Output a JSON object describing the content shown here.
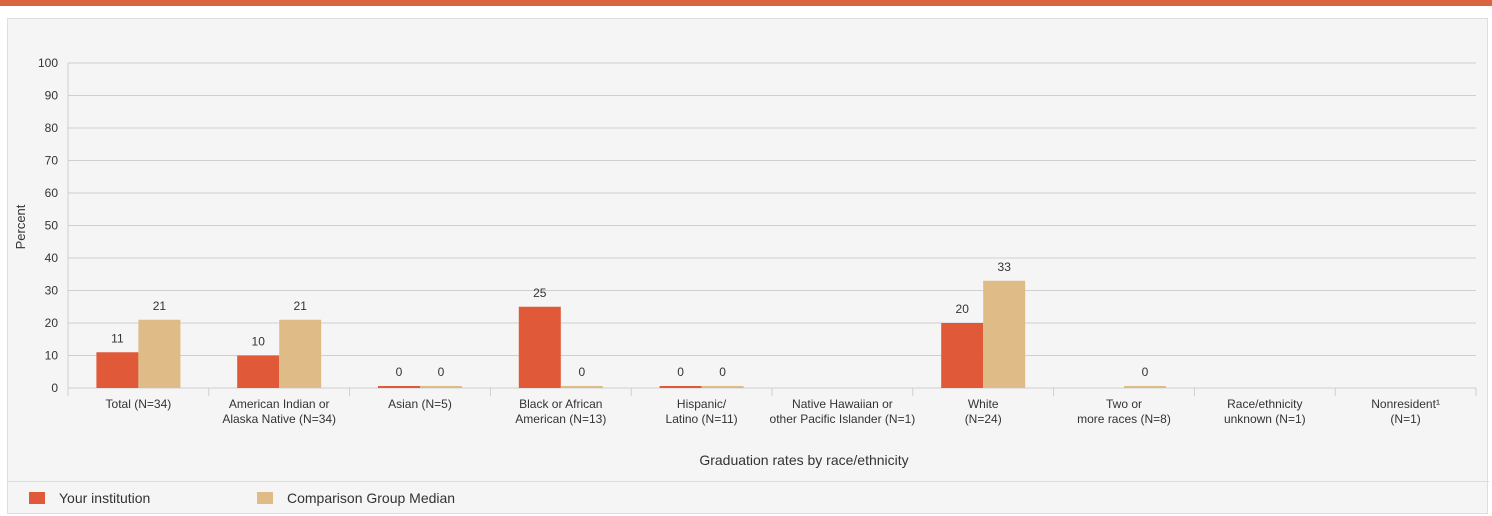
{
  "colors": {
    "accent_bar": "#d9643f",
    "your_institution": "#e05a3a",
    "comparison_median": "#dfbb87",
    "gridline": "#cfcfcf"
  },
  "chart_data": {
    "type": "bar",
    "xlabel": "Graduation rates by race/ethnicity",
    "ylabel": "Percent",
    "ylim": [
      0,
      100
    ],
    "yticks": [
      0,
      10,
      20,
      30,
      40,
      50,
      60,
      70,
      80,
      90,
      100
    ],
    "grid": true,
    "legend_position": "bottom-left",
    "categories": [
      [
        "Total (N=34)"
      ],
      [
        "American Indian or",
        "Alaska Native (N=34)"
      ],
      [
        "Asian (N=5)"
      ],
      [
        "Black or African",
        "American (N=13)"
      ],
      [
        "Hispanic/",
        "Latino (N=11)"
      ],
      [
        "Native Hawaiian or",
        "other Pacific Islander (N=1)"
      ],
      [
        "White",
        "(N=24)"
      ],
      [
        "Two or",
        "more races (N=8)"
      ],
      [
        "Race/ethnicity",
        "unknown (N=1)"
      ],
      [
        "Nonresident¹",
        "(N=1)"
      ]
    ],
    "series": [
      {
        "name": "Your institution",
        "color": "#e05a3a",
        "values": [
          11,
          10,
          0,
          25,
          0,
          null,
          20,
          null,
          null,
          null
        ]
      },
      {
        "name": "Comparison Group Median",
        "color": "#dfbb87",
        "values": [
          21,
          21,
          0,
          0,
          0,
          null,
          33,
          0,
          null,
          null
        ]
      }
    ]
  }
}
